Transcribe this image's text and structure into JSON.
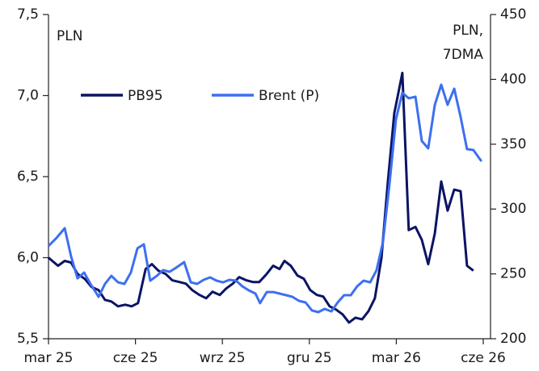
{
  "chart_data": {
    "type": "line",
    "ylabel": "PLN",
    "y2label": [
      "PLN,",
      "7DMA"
    ],
    "xlim": [
      0,
      15
    ],
    "xticks": [
      {
        "value": 0,
        "label": "mar 25"
      },
      {
        "value": 3,
        "label": "cze 25"
      },
      {
        "value": 6,
        "label": "wrz 25"
      },
      {
        "value": 9,
        "label": "gru 25"
      },
      {
        "value": 12,
        "label": "mar 26"
      },
      {
        "value": 15,
        "label": "cze 26"
      }
    ],
    "ylim": [
      5.5,
      7.5
    ],
    "yticks": [
      {
        "value": 5.5,
        "label": "5,5"
      },
      {
        "value": 6.0,
        "label": "6,0"
      },
      {
        "value": 6.5,
        "label": "6,5"
      },
      {
        "value": 7.0,
        "label": "7,0"
      },
      {
        "value": 7.5,
        "label": "7,5"
      }
    ],
    "y2lim": [
      200,
      450
    ],
    "y2ticks": [
      200,
      250,
      300,
      350,
      400,
      450
    ],
    "legend": "upper left",
    "series": [
      {
        "name": "PB95",
        "color": "#0b1464",
        "x": [
          0,
          0.33,
          0.56,
          0.78,
          1.0,
          1.25,
          1.48,
          1.73,
          1.95,
          2.17,
          2.4,
          2.65,
          2.87,
          3.09,
          3.35,
          3.57,
          3.79,
          4.04,
          4.27,
          4.52,
          4.74,
          4.96,
          5.21,
          5.44,
          5.66,
          5.91,
          6.13,
          6.36,
          6.58,
          6.83,
          7.05,
          7.27,
          7.53,
          7.75,
          7.97,
          8.14,
          8.36,
          8.59,
          8.81,
          9.03,
          9.26,
          9.48,
          9.7,
          9.92,
          10.15,
          10.37,
          10.59,
          10.82,
          11.04,
          11.26,
          11.49,
          11.71,
          11.93,
          12.21,
          12.43,
          12.66,
          12.88,
          13.1,
          13.33,
          13.55,
          13.77,
          14.0,
          14.22,
          14.44,
          14.66
        ],
        "values": [
          6.0,
          5.95,
          5.98,
          5.97,
          5.9,
          5.87,
          5.82,
          5.8,
          5.74,
          5.73,
          5.7,
          5.71,
          5.7,
          5.72,
          5.93,
          5.96,
          5.92,
          5.9,
          5.86,
          5.85,
          5.84,
          5.8,
          5.77,
          5.75,
          5.79,
          5.77,
          5.81,
          5.84,
          5.88,
          5.86,
          5.85,
          5.85,
          5.9,
          5.95,
          5.93,
          5.98,
          5.95,
          5.89,
          5.87,
          5.8,
          5.77,
          5.76,
          5.7,
          5.68,
          5.65,
          5.6,
          5.63,
          5.62,
          5.67,
          5.75,
          6.0,
          6.47,
          6.89,
          7.14,
          6.17,
          6.19,
          6.11,
          5.96,
          6.15,
          6.47,
          6.29,
          6.42,
          6.41,
          5.95,
          5.92
        ]
      },
      {
        "name": "Brent (P)",
        "color": "#3d6ff0",
        "axis": "y2",
        "x": [
          0,
          0.28,
          0.56,
          0.78,
          1.0,
          1.23,
          1.45,
          1.73,
          1.95,
          2.17,
          2.4,
          2.62,
          2.84,
          3.07,
          3.29,
          3.51,
          3.74,
          3.96,
          4.18,
          4.4,
          4.68,
          4.91,
          5.13,
          5.35,
          5.58,
          5.8,
          6.02,
          6.24,
          6.47,
          6.69,
          6.91,
          7.14,
          7.3,
          7.53,
          7.75,
          7.97,
          8.2,
          8.42,
          8.64,
          8.87,
          9.09,
          9.31,
          9.53,
          9.76,
          9.98,
          10.2,
          10.43,
          10.65,
          10.87,
          11.1,
          11.32,
          11.54,
          11.76,
          11.99,
          12.21,
          12.43,
          12.66,
          12.88,
          13.1,
          13.33,
          13.55,
          13.77,
          14.0,
          14.22,
          14.44,
          14.66,
          14.94
        ],
        "values": [
          271.5,
          277.8,
          285.2,
          263.4,
          246.6,
          251,
          242.3,
          232.3,
          242.3,
          248.5,
          243.5,
          242.3,
          251,
          269.7,
          272.8,
          244.8,
          248.5,
          252.9,
          251.6,
          254.7,
          259.1,
          243.5,
          242.3,
          245.4,
          247.3,
          244.8,
          243.5,
          245.4,
          244.8,
          240.4,
          237.3,
          234.8,
          227.4,
          236,
          236,
          234.8,
          233.6,
          232.3,
          229.2,
          228,
          221.8,
          220.5,
          223,
          221.1,
          228,
          233.6,
          233.6,
          240.4,
          244.8,
          243.5,
          252.9,
          274.6,
          318.2,
          369.2,
          389.7,
          385.4,
          386.6,
          352.4,
          346.8,
          380.4,
          395.9,
          380.4,
          392.8,
          371,
          346.2,
          345.5,
          336.8
        ]
      }
    ]
  }
}
